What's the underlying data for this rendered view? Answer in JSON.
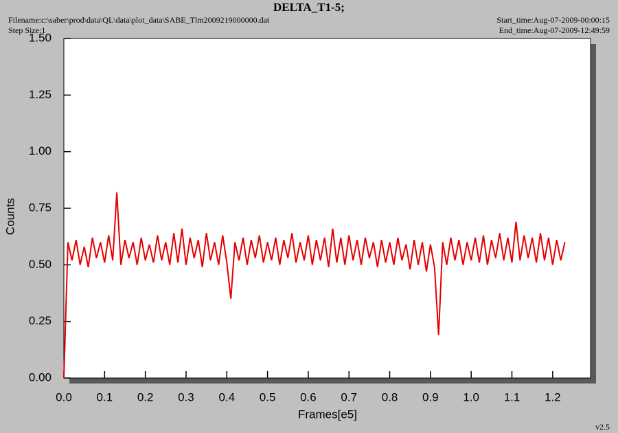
{
  "chart_data": {
    "type": "line",
    "title": "DELTA_T1-5;",
    "filename": "Filename:c:\\saber\\prod\\data\\QL\\data\\plot_data\\SABE_Tlm2009219000000.dat",
    "step_size": "Step Size:1",
    "start_time": "Start_time:Aug-07-2009-00:00:15",
    "end_time": "End_time:Aug-07-2009-12:49:59",
    "version": "v2.5",
    "xlabel": "Frames[e5]",
    "ylabel": "Counts",
    "xlim": [
      0,
      1.293
    ],
    "ylim": [
      0,
      1.5
    ],
    "xticks": [
      {
        "value": 0,
        "label": "0.0"
      },
      0.1,
      0.2,
      0.3,
      0.4,
      0.5,
      0.6,
      0.7,
      0.8,
      0.9,
      {
        "value": 1,
        "label": "1.0"
      },
      1.1,
      1.2
    ],
    "yticks": [
      {
        "value": 0,
        "label": "0.00"
      },
      0.25,
      {
        "value": 0.5,
        "label": "0.50"
      },
      0.75,
      {
        "value": 1,
        "label": "1.00"
      },
      1.25,
      {
        "value": 1.5,
        "label": "1.50"
      }
    ],
    "x": [
      0,
      0.01,
      0.02,
      0.03,
      0.04,
      0.05,
      0.06,
      0.07,
      0.08,
      0.09,
      0.1,
      0.11,
      0.12,
      0.13,
      0.14,
      0.15,
      0.16,
      0.17,
      0.18,
      0.19,
      0.2,
      0.21,
      0.22,
      0.23,
      0.24,
      0.25,
      0.26,
      0.27,
      0.28,
      0.29,
      0.3,
      0.31,
      0.32,
      0.33,
      0.34,
      0.35,
      0.36,
      0.37,
      0.38,
      0.39,
      0.4,
      0.41,
      0.42,
      0.43,
      0.44,
      0.45,
      0.46,
      0.47,
      0.48,
      0.49,
      0.5,
      0.51,
      0.52,
      0.53,
      0.54,
      0.55,
      0.56,
      0.57,
      0.58,
      0.59,
      0.6,
      0.61,
      0.62,
      0.63,
      0.64,
      0.65,
      0.66,
      0.67,
      0.68,
      0.69,
      0.7,
      0.71,
      0.72,
      0.73,
      0.74,
      0.75,
      0.76,
      0.77,
      0.78,
      0.79,
      0.8,
      0.81,
      0.82,
      0.83,
      0.84,
      0.85,
      0.86,
      0.87,
      0.88,
      0.89,
      0.9,
      0.91,
      0.92,
      0.93,
      0.94,
      0.95,
      0.96,
      0.97,
      0.98,
      0.99,
      1,
      1.01,
      1.02,
      1.03,
      1.04,
      1.05,
      1.06,
      1.07,
      1.08,
      1.09,
      1.1,
      1.11,
      1.12,
      1.13,
      1.14,
      1.15,
      1.16,
      1.17,
      1.18,
      1.19,
      1.2,
      1.21,
      1.22,
      1.23
    ],
    "series": [
      {
        "color": "#e60000",
        "values": [
          0.0,
          0.6,
          0.52,
          0.61,
          0.5,
          0.58,
          0.49,
          0.62,
          0.53,
          0.6,
          0.51,
          0.63,
          0.52,
          0.82,
          0.5,
          0.61,
          0.53,
          0.6,
          0.5,
          0.62,
          0.52,
          0.59,
          0.51,
          0.63,
          0.52,
          0.6,
          0.5,
          0.64,
          0.51,
          0.66,
          0.5,
          0.62,
          0.53,
          0.61,
          0.49,
          0.64,
          0.52,
          0.6,
          0.5,
          0.63,
          0.51,
          0.35,
          0.6,
          0.52,
          0.62,
          0.5,
          0.61,
          0.53,
          0.63,
          0.51,
          0.6,
          0.52,
          0.62,
          0.5,
          0.61,
          0.53,
          0.64,
          0.51,
          0.6,
          0.52,
          0.63,
          0.5,
          0.61,
          0.52,
          0.62,
          0.49,
          0.66,
          0.51,
          0.62,
          0.5,
          0.63,
          0.52,
          0.61,
          0.5,
          0.62,
          0.53,
          0.6,
          0.49,
          0.61,
          0.51,
          0.6,
          0.5,
          0.62,
          0.52,
          0.59,
          0.48,
          0.61,
          0.5,
          0.6,
          0.47,
          0.59,
          0.49,
          0.19,
          0.6,
          0.5,
          0.62,
          0.52,
          0.61,
          0.5,
          0.6,
          0.52,
          0.62,
          0.51,
          0.63,
          0.5,
          0.61,
          0.53,
          0.64,
          0.52,
          0.62,
          0.51,
          0.69,
          0.52,
          0.63,
          0.53,
          0.62,
          0.51,
          0.64,
          0.52,
          0.62,
          0.5,
          0.61,
          0.52,
          0.6
        ]
      }
    ]
  }
}
